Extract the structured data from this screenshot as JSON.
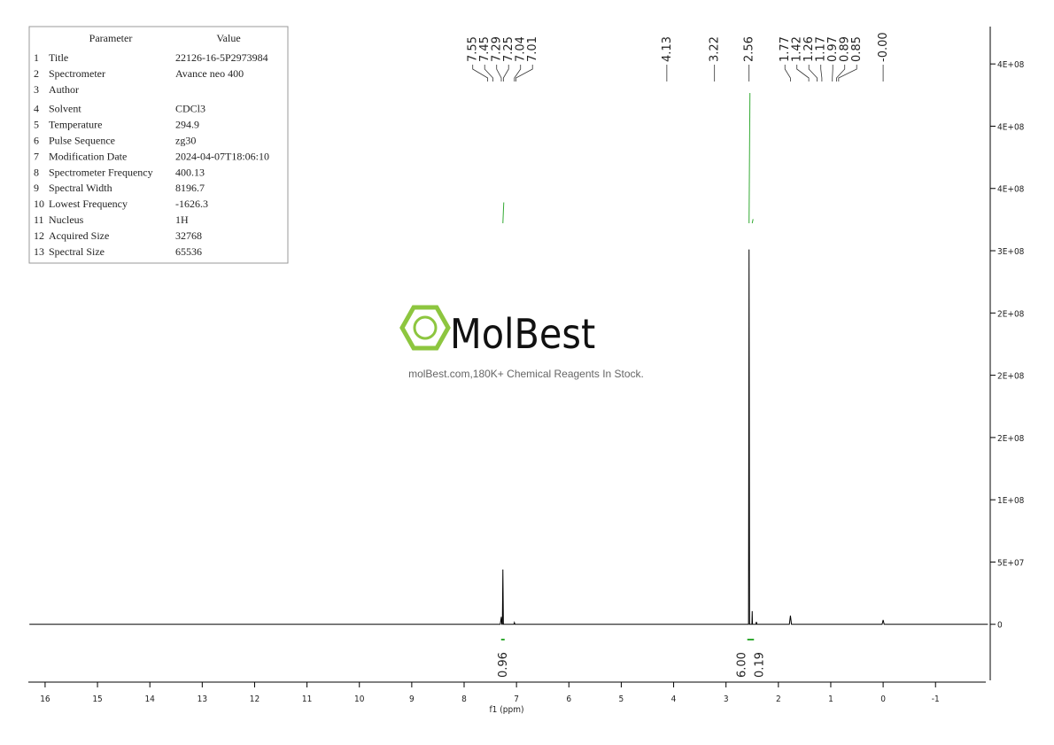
{
  "chart_data": {
    "type": "nmr",
    "x_label": "f1 (ppm)",
    "xlim": [
      16.32,
      -1.96
    ],
    "xticks": [
      16,
      15,
      14,
      13,
      12,
      11,
      10,
      9,
      8,
      7,
      6,
      5,
      4,
      3,
      2,
      1,
      0,
      -1
    ],
    "ylim": [
      -45000000,
      480000000
    ],
    "yticks": [
      0,
      {
        "value": 50000000,
        "label": "5E+07"
      },
      {
        "value": 100000000,
        "label": "1E+08"
      },
      {
        "value": 150000000,
        "label": "2E+08"
      },
      {
        "value": 200000000,
        "label": "2E+08"
      },
      {
        "value": 250000000,
        "label": "2E+08"
      },
      {
        "value": 300000000,
        "label": "3E+08"
      },
      {
        "value": 350000000,
        "label": "4E+08"
      },
      {
        "value": 400000000,
        "label": "4E+08"
      },
      {
        "value": 450000000,
        "label": "4E+08"
      }
    ],
    "color": "#000000",
    "x": [
      16.3,
      7.31,
      7.29,
      7.28,
      7.27,
      7.26,
      7.25,
      7.22,
      7.05,
      7.04,
      7.03,
      2.6,
      2.57,
      2.56,
      2.55,
      2.52,
      2.505,
      2.5,
      2.495,
      2.45,
      2.43,
      2.42,
      2.41,
      1.79,
      1.77,
      1.75,
      0.02,
      0,
      -0.02,
      -2.0
    ],
    "values": [
      0,
      0,
      6000000,
      0,
      0,
      44000000,
      0,
      0,
      0,
      1400000,
      0,
      0,
      0,
      301000000,
      0,
      0,
      0,
      10600000,
      0,
      0,
      0,
      2000000,
      0,
      0,
      7000000,
      0,
      0,
      3500000,
      0,
      0
    ],
    "peaks": {
      "values": [
        7.55,
        7.45,
        7.29,
        7.25,
        7.04,
        7.01,
        4.13,
        3.22,
        2.56,
        1.77,
        1.42,
        1.26,
        1.17,
        0.97,
        0.89,
        0.85,
        -0.0
      ],
      "value_labels": [
        "7.55",
        "7.45",
        "7.29",
        "7.25",
        "7.04",
        "7.01",
        "4.13",
        "3.22",
        "2.56",
        "1.77",
        "1.42",
        "1.26",
        "1.17",
        "0.97",
        "0.89",
        "0.85",
        "-0.00"
      ]
    },
    "integrals": {
      "x": [
        7.26,
        2.56,
        2.5
      ],
      "values": [
        0.96,
        6,
        0.19
      ],
      "value_labels": [
        "0.96",
        "6.00",
        "0.19"
      ],
      "color": "#33aa33"
    }
  },
  "parameter_table": {
    "header": [
      "Parameter",
      "Value"
    ],
    "rows": [
      [
        "1",
        "Title",
        "22126-16-5P2973984"
      ],
      [
        "2",
        "Spectrometer",
        "Avance neo 400"
      ],
      [
        "3",
        "Author"
      ],
      [
        "4",
        "Solvent",
        "CDCl3"
      ],
      [
        "5",
        "Temperature",
        "294.9"
      ],
      [
        "6",
        "Pulse Sequence",
        "zg30"
      ],
      [
        "7",
        "Modification Date",
        "2024-04-07T18:06:10"
      ],
      [
        "8",
        "Spectrometer Frequency",
        "400.13"
      ],
      [
        "9",
        "Spectral Width",
        "8196.7"
      ],
      [
        "10",
        "Lowest Frequency",
        "-1626.3"
      ],
      [
        "11",
        "Nucleus",
        "1H"
      ],
      [
        "12",
        "Acquired Size",
        "32768"
      ],
      [
        "13",
        "Spectral Size",
        "65536"
      ]
    ]
  },
  "watermark": {
    "brand": "MolBest",
    "text": "molBest.com,180K+ Chemical Reagents In Stock."
  }
}
